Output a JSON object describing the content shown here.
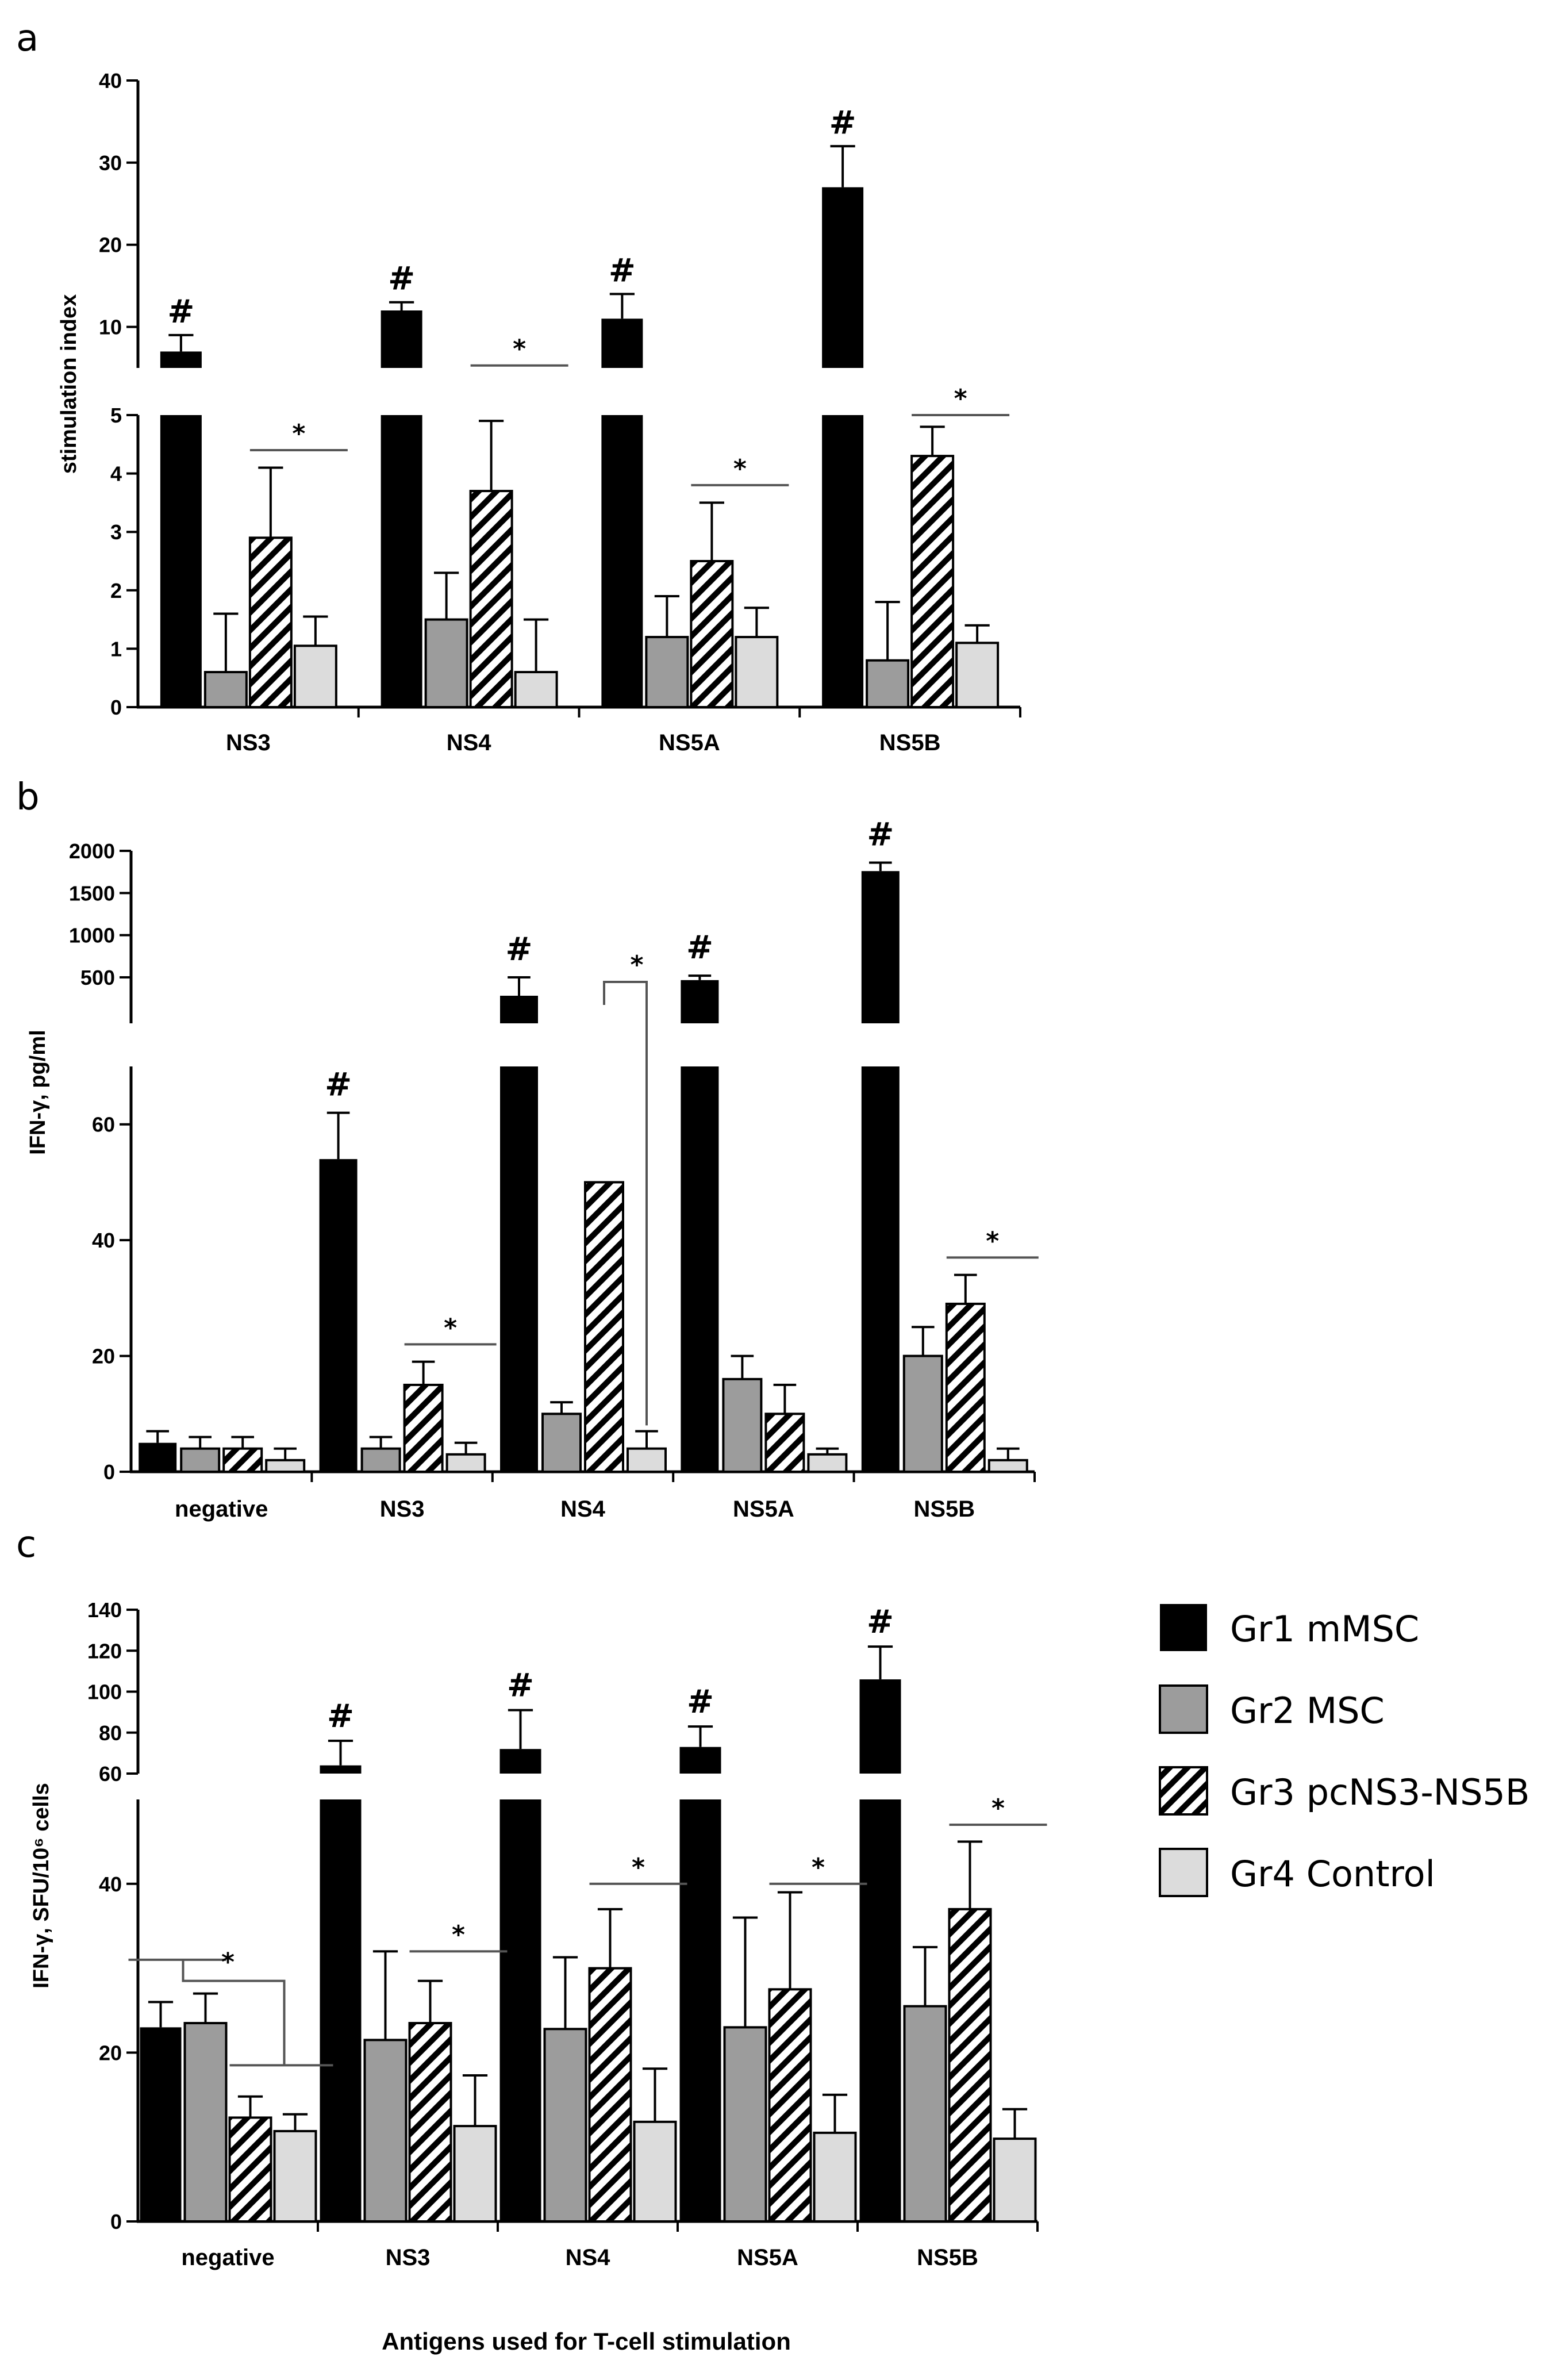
{
  "colors": {
    "gr1": "#000000",
    "gr2": "#9c9c9c",
    "gr3_stripe": "#000000",
    "gr4": "#dcdcdc",
    "lines": "#555555"
  },
  "legend": [
    "Gr1 mMSC",
    "Gr2 MSC",
    "Gr3 pcNS3-NS5B",
    "Gr4 Control"
  ],
  "x_axis_title": "Antigens used for T-cell stimulation",
  "chart_data": [
    {
      "panel": "a",
      "type": "bar",
      "ylabel": "stimulation index",
      "categories": [
        "NS3",
        "NS4",
        "NS5A",
        "NS5B"
      ],
      "axis_lower": {
        "ylim": [
          0,
          5
        ],
        "ticks": [
          "0",
          "1",
          "2",
          "3",
          "4",
          "5"
        ]
      },
      "axis_upper": {
        "ylim": [
          5,
          40
        ],
        "ticks": [
          "10",
          "20",
          "30",
          "40"
        ]
      },
      "series": [
        {
          "name": "Gr1 mMSC",
          "values": [
            7,
            12,
            11,
            27
          ],
          "errors": [
            2,
            1,
            3,
            5
          ]
        },
        {
          "name": "Gr2 MSC",
          "values": [
            0.6,
            1.5,
            1.2,
            0.8
          ],
          "errors": [
            1.0,
            0.8,
            0.7,
            1.0
          ]
        },
        {
          "name": "Gr3 pcNS3-NS5B",
          "values": [
            2.9,
            3.7,
            2.5,
            4.3
          ],
          "errors": [
            1.2,
            1.2,
            1.0,
            0.5
          ]
        },
        {
          "name": "Gr4 Control",
          "values": [
            1.05,
            0.6,
            1.2,
            1.1
          ],
          "errors": [
            0.5,
            0.9,
            0.5,
            0.3
          ]
        }
      ],
      "hash_marks": [
        "#",
        "#",
        "#",
        "#"
      ],
      "significance": [
        {
          "category": "NS3",
          "value": 4.4,
          "label": "*"
        },
        {
          "category": "NS4",
          "value": 5.3,
          "label": "*"
        },
        {
          "category": "NS5A",
          "value": 3.8,
          "label": "*"
        },
        {
          "category": "NS5B",
          "value": 5.0,
          "label": "*"
        }
      ]
    },
    {
      "panel": "b",
      "type": "bar",
      "ylabel": "IFN-γ, pg/ml",
      "categories": [
        "negative",
        "NS3",
        "NS4",
        "NS5A",
        "NS5B"
      ],
      "axis_lower": {
        "ylim": [
          0,
          70
        ],
        "ticks": [
          "0",
          "20",
          "40",
          "60"
        ]
      },
      "axis_upper": {
        "ylim": [
          0,
          2000
        ],
        "ticks": [
          "500",
          "1000",
          "1500",
          "2000"
        ]
      },
      "series": [
        {
          "name": "Gr1 mMSC",
          "values": [
            5,
            54,
            300,
            470,
            1760
          ],
          "errors": [
            2,
            8,
            200,
            50,
            100
          ]
        },
        {
          "name": "Gr2 MSC",
          "values": [
            4,
            4,
            10,
            16,
            20
          ],
          "errors": [
            2,
            2,
            2,
            4,
            5
          ]
        },
        {
          "name": "Gr3 pcNS3-NS5B",
          "values": [
            4,
            15,
            50,
            10,
            29
          ],
          "errors": [
            2,
            4,
            0,
            5,
            5
          ]
        },
        {
          "name": "Gr4 Control",
          "values": [
            2,
            3,
            4,
            3,
            2
          ],
          "errors": [
            2,
            2,
            3,
            1,
            2
          ]
        }
      ],
      "hash_marks": [
        "#",
        "#",
        "#",
        "#"
      ],
      "significance": [
        {
          "category": "NS3",
          "value": 22,
          "label": "*"
        },
        {
          "category": "NS4",
          "value": 450,
          "label": "*"
        },
        {
          "category": "NS5B",
          "value": 37,
          "label": "*"
        }
      ]
    },
    {
      "panel": "c",
      "type": "bar",
      "ylabel": "IFN-γ, SFU/10⁶ cells",
      "categories": [
        "negative",
        "NS3",
        "NS4",
        "NS5A",
        "NS5B"
      ],
      "axis_lower": {
        "ylim": [
          0,
          50
        ],
        "ticks": [
          "0",
          "20",
          "40"
        ]
      },
      "axis_upper": {
        "ylim": [
          60,
          140
        ],
        "ticks": [
          "60",
          "80",
          "100",
          "120",
          "140"
        ]
      },
      "series": [
        {
          "name": "Gr1 mMSC",
          "values": [
            23,
            64,
            72,
            73,
            106
          ],
          "errors": [
            3,
            12,
            19,
            10,
            16
          ]
        },
        {
          "name": "Gr2 MSC",
          "values": [
            23.5,
            21.5,
            22.8,
            23,
            25.5
          ],
          "errors": [
            3.5,
            10.5,
            8.5,
            13,
            7
          ]
        },
        {
          "name": "Gr3 pcNS3-NS5B",
          "values": [
            12.3,
            23.5,
            30,
            27.5,
            37
          ],
          "errors": [
            2.5,
            5,
            7,
            11.5,
            8
          ]
        },
        {
          "name": "Gr4 Control",
          "values": [
            10.7,
            11.3,
            11.8,
            10.5,
            9.8
          ],
          "errors": [
            2,
            6,
            6.3,
            4.5,
            3.5
          ]
        }
      ],
      "hash_marks": [
        "#",
        "#",
        "#",
        "#"
      ],
      "significance": [
        {
          "category": "negative",
          "value": 28,
          "label": "*"
        },
        {
          "category": "NS3",
          "value": 32,
          "label": "*"
        },
        {
          "category": "NS4",
          "value": 40,
          "label": "*"
        },
        {
          "category": "NS5A",
          "value": 40,
          "label": "*"
        },
        {
          "category": "NS5B",
          "value": 47,
          "label": "*"
        }
      ]
    }
  ]
}
